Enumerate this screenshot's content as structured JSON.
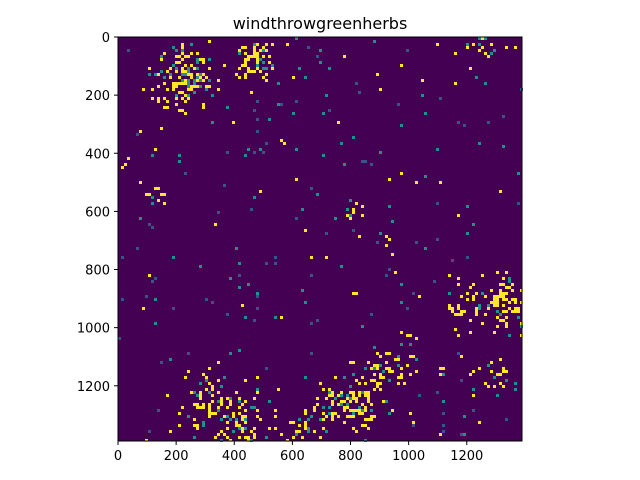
{
  "chart_data": {
    "type": "heatmap",
    "title": "windthrowgreenherbs",
    "xlabel": "",
    "ylabel": "",
    "xlim": [
      0,
      1390
    ],
    "ylim": [
      1390,
      0
    ],
    "x_ticks": [
      0,
      200,
      400,
      600,
      800,
      1000,
      1200
    ],
    "y_ticks": [
      0,
      200,
      400,
      600,
      800,
      1000,
      1200
    ],
    "x_tick_labels": [
      "0",
      "200",
      "400",
      "600",
      "800",
      "1000",
      "1200"
    ],
    "y_tick_labels": [
      "0",
      "200",
      "400",
      "600",
      "800",
      "1000",
      "1200"
    ],
    "colormap": "viridis",
    "colors": {
      "background": "#440154",
      "low": "#3b528b",
      "mid": "#21918c",
      "high": "#fde725"
    },
    "grid": false,
    "legend": "none",
    "hotspots": [
      {
        "x": 230,
        "y": 140,
        "spread": 55,
        "weight": 2.2
      },
      {
        "x": 470,
        "y": 80,
        "spread": 45,
        "weight": 1.6
      },
      {
        "x": 130,
        "y": 540,
        "spread": 25,
        "weight": 1.0
      },
      {
        "x": 10,
        "y": 430,
        "spread": 18,
        "weight": 0.8
      },
      {
        "x": 430,
        "y": 380,
        "spread": 10,
        "weight": 0.4
      },
      {
        "x": 810,
        "y": 590,
        "spread": 25,
        "weight": 0.7
      },
      {
        "x": 940,
        "y": 690,
        "spread": 20,
        "weight": 0.5
      },
      {
        "x": 960,
        "y": 480,
        "spread": 20,
        "weight": 0.4
      },
      {
        "x": 1330,
        "y": 910,
        "spread": 50,
        "weight": 1.6
      },
      {
        "x": 1200,
        "y": 930,
        "spread": 40,
        "weight": 0.8
      },
      {
        "x": 1000,
        "y": 1030,
        "spread": 25,
        "weight": 0.6
      },
      {
        "x": 1100,
        "y": 1140,
        "spread": 15,
        "weight": 0.4
      },
      {
        "x": 1300,
        "y": 1180,
        "spread": 40,
        "weight": 0.8
      },
      {
        "x": 800,
        "y": 1260,
        "spread": 60,
        "weight": 1.3
      },
      {
        "x": 930,
        "y": 1150,
        "spread": 50,
        "weight": 1.0
      },
      {
        "x": 420,
        "y": 1330,
        "spread": 60,
        "weight": 1.2
      },
      {
        "x": 300,
        "y": 1250,
        "spread": 60,
        "weight": 0.9
      },
      {
        "x": 650,
        "y": 1340,
        "spread": 50,
        "weight": 0.9
      },
      {
        "x": 1250,
        "y": 20,
        "spread": 40,
        "weight": 0.8
      },
      {
        "x": 1180,
        "y": 1000,
        "spread": 20,
        "weight": 0.4
      },
      {
        "x": 1370,
        "y": 1050,
        "spread": 25,
        "weight": 0.5
      }
    ]
  }
}
